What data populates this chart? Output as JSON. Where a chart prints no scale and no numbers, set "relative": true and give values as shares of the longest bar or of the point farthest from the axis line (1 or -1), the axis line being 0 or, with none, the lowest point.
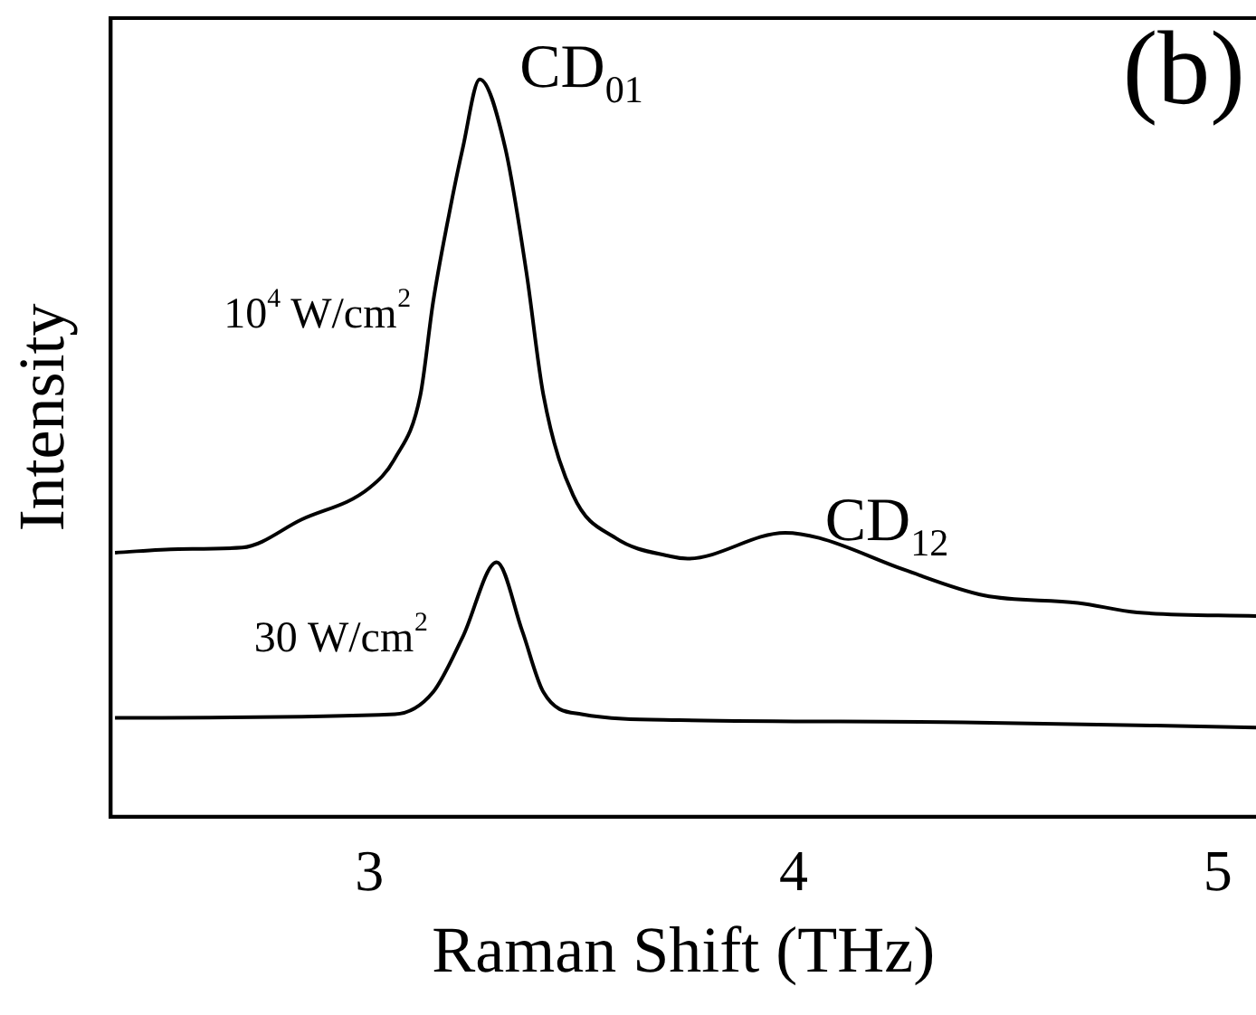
{
  "chart_data": {
    "type": "line",
    "xlabel": "Raman Shift (THz)",
    "ylabel": "Intensity",
    "relative": true,
    "xlim": [
      2.39,
      5.09
    ],
    "xticks": [
      3,
      4,
      5
    ],
    "grid": false,
    "legend": false,
    "marker": "none",
    "line_style": "solid",
    "annotations": [
      "(b)",
      {
        "text": "CD$_{01}$",
        "x": 3.26,
        "y": 1.0
      },
      {
        "text": "CD$_{12}$",
        "x": 3.98,
        "y": 0.385
      }
    ],
    "series": [
      {
        "name": "10$^{4}$ W/cm$^{2}$",
        "color": "#000000",
        "x": [
          2.4,
          2.55,
          2.7,
          2.84,
          3.0,
          3.06,
          3.12,
          3.15,
          3.19,
          3.22,
          3.26,
          3.32,
          3.37,
          3.41,
          3.48,
          3.58,
          3.71,
          3.75,
          3.98,
          4.06,
          4.26,
          4.45,
          4.67,
          4.81,
          5.09
        ],
        "values": [
          0.358,
          0.363,
          0.365,
          0.403,
          0.446,
          0.486,
          0.572,
          0.698,
          0.824,
          0.907,
          1.0,
          0.907,
          0.738,
          0.572,
          0.436,
          0.378,
          0.353,
          0.35,
          0.385,
          0.378,
          0.335,
          0.3,
          0.29,
          0.277,
          0.272
        ]
      },
      {
        "name": "30 W/cm$^{2}$",
        "color": "#000000",
        "x": [
          2.4,
          3.06,
          3.15,
          3.22,
          3.3,
          3.36,
          3.41,
          3.5,
          3.73,
          4.4,
          5.09
        ],
        "values": [
          0.134,
          0.139,
          0.169,
          0.244,
          0.345,
          0.252,
          0.169,
          0.139,
          0.131,
          0.128,
          0.121
        ]
      }
    ]
  }
}
